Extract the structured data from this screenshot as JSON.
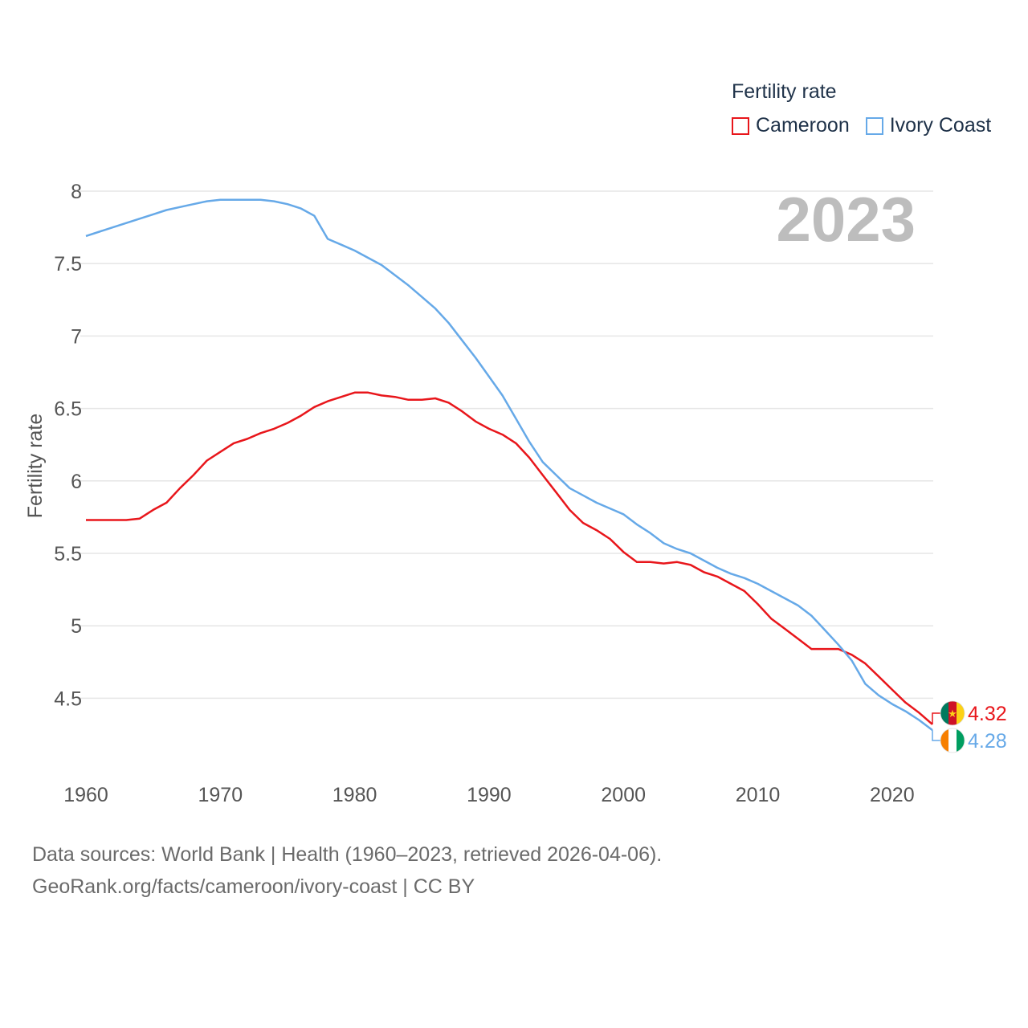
{
  "legend": {
    "title": "Fertility rate",
    "items": [
      {
        "label": "Cameroon",
        "color": "#e8161b"
      },
      {
        "label": "Ivory Coast",
        "color": "#66a9e8"
      }
    ]
  },
  "year_label": "2023",
  "source": {
    "line1": "Data sources: World Bank | Health (1960–2023, retrieved 2026-04-06).",
    "line2": "GeoRank.org/facts/cameroon/ivory-coast | CC BY"
  },
  "end_labels": [
    {
      "text": "4.32",
      "color": "#e8161b",
      "flag": "cameroon-flag-icon"
    },
    {
      "text": "4.28",
      "color": "#66a9e8",
      "flag": "ivory-coast-flag-icon"
    }
  ],
  "chart_data": {
    "type": "line",
    "title": "Fertility rate",
    "xlabel": "",
    "ylabel": "Fertility rate",
    "xlim": [
      1960,
      2023
    ],
    "ylim": [
      4.12,
      8.0
    ],
    "x_ticks": [
      1960,
      1970,
      1980,
      1990,
      2000,
      2010,
      2020
    ],
    "y_ticks": [
      4.5,
      5,
      5.5,
      6,
      6.5,
      7,
      7.5,
      8
    ],
    "y_tick_labels": [
      "4.5",
      "5",
      "5.5",
      "6",
      "6.5",
      "7",
      "7.5",
      "8"
    ],
    "grid": true,
    "legend_position": "top-right",
    "x": [
      1960,
      1961,
      1962,
      1963,
      1964,
      1965,
      1966,
      1967,
      1968,
      1969,
      1970,
      1971,
      1972,
      1973,
      1974,
      1975,
      1976,
      1977,
      1978,
      1979,
      1980,
      1981,
      1982,
      1983,
      1984,
      1985,
      1986,
      1987,
      1988,
      1989,
      1990,
      1991,
      1992,
      1993,
      1994,
      1995,
      1996,
      1997,
      1998,
      1999,
      2000,
      2001,
      2002,
      2003,
      2004,
      2005,
      2006,
      2007,
      2008,
      2009,
      2010,
      2011,
      2012,
      2013,
      2014,
      2015,
      2016,
      2017,
      2018,
      2019,
      2020,
      2021,
      2022,
      2023
    ],
    "series": [
      {
        "name": "Cameroon",
        "color": "#e8161b",
        "values": [
          5.73,
          5.73,
          5.73,
          5.73,
          5.74,
          5.8,
          5.85,
          5.95,
          6.04,
          6.14,
          6.2,
          6.26,
          6.29,
          6.33,
          6.36,
          6.4,
          6.45,
          6.51,
          6.55,
          6.58,
          6.61,
          6.61,
          6.59,
          6.58,
          6.56,
          6.56,
          6.57,
          6.54,
          6.48,
          6.41,
          6.36,
          6.32,
          6.26,
          6.16,
          6.04,
          5.92,
          5.8,
          5.71,
          5.66,
          5.6,
          5.51,
          5.44,
          5.44,
          5.43,
          5.44,
          5.42,
          5.37,
          5.34,
          5.29,
          5.24,
          5.15,
          5.05,
          4.98,
          4.91,
          4.84,
          4.84,
          4.84,
          4.8,
          4.74,
          4.65,
          4.56,
          4.47,
          4.4,
          4.32
        ]
      },
      {
        "name": "Ivory Coast",
        "color": "#66a9e8",
        "values": [
          7.69,
          7.72,
          7.75,
          7.78,
          7.81,
          7.84,
          7.87,
          7.89,
          7.91,
          7.93,
          7.94,
          7.94,
          7.94,
          7.94,
          7.93,
          7.91,
          7.88,
          7.83,
          7.67,
          7.63,
          7.59,
          7.54,
          7.49,
          7.42,
          7.35,
          7.27,
          7.19,
          7.09,
          6.97,
          6.85,
          6.72,
          6.59,
          6.43,
          6.27,
          6.13,
          6.04,
          5.95,
          5.9,
          5.85,
          5.81,
          5.77,
          5.7,
          5.64,
          5.57,
          5.53,
          5.5,
          5.45,
          5.4,
          5.36,
          5.33,
          5.29,
          5.24,
          5.19,
          5.14,
          5.07,
          4.97,
          4.87,
          4.76,
          4.6,
          4.52,
          4.46,
          4.41,
          4.35,
          4.28
        ]
      }
    ]
  }
}
